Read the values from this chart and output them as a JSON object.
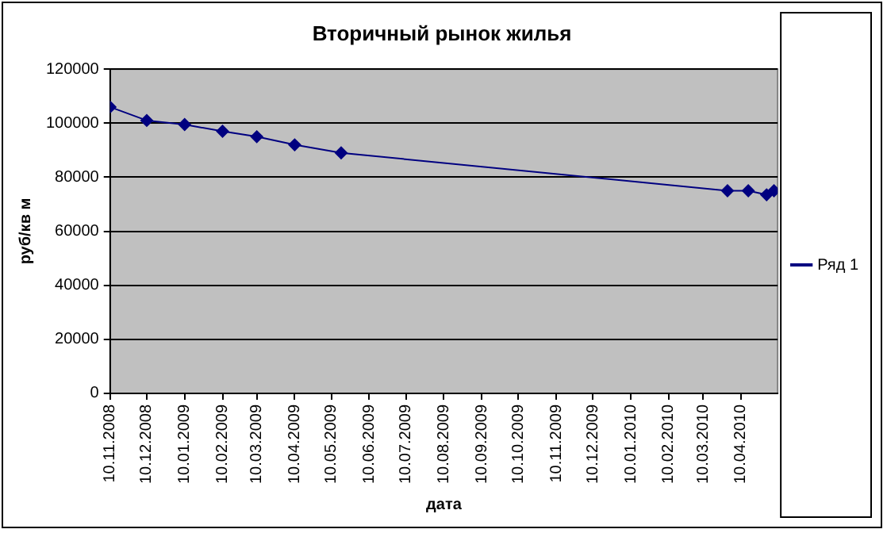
{
  "chart_data": {
    "type": "line",
    "title": "Вторичный рынок жилья",
    "xlabel": "дата",
    "ylabel": "руб/кв м",
    "x": [
      "2008-11-10",
      "2008-12-10",
      "2009-01-10",
      "2009-02-10",
      "2009-03-10",
      "2009-04-10",
      "2009-05-18",
      "2010-03-30",
      "2010-04-16",
      "2010-05-01",
      "2010-05-07"
    ],
    "series": [
      {
        "name": "Ряд 1",
        "color": "#000080",
        "values": [
          106000,
          101000,
          99500,
          97000,
          95000,
          92000,
          89000,
          75000,
          75000,
          73500,
          75000
        ]
      }
    ],
    "xlim": [
      "2008-11-10",
      "2010-05-10"
    ],
    "xticks": [
      {
        "value": "2008-11-10",
        "label": "10.11.2008"
      },
      {
        "value": "2008-12-10",
        "label": "10.12.2008"
      },
      {
        "value": "2009-01-10",
        "label": "10.01.2009"
      },
      {
        "value": "2009-02-10",
        "label": "10.02.2009"
      },
      {
        "value": "2009-03-10",
        "label": "10.03.2009"
      },
      {
        "value": "2009-04-10",
        "label": "10.04.2009"
      },
      {
        "value": "2009-05-10",
        "label": "10.05.2009"
      },
      {
        "value": "2009-06-10",
        "label": "10.06.2009"
      },
      {
        "value": "2009-07-10",
        "label": "10.07.2009"
      },
      {
        "value": "2009-08-10",
        "label": "10.08.2009"
      },
      {
        "value": "2009-09-10",
        "label": "10.09.2009"
      },
      {
        "value": "2009-10-10",
        "label": "10.10.2009"
      },
      {
        "value": "2009-11-10",
        "label": "10.11.2009"
      },
      {
        "value": "2009-12-10",
        "label": "10.12.2009"
      },
      {
        "value": "2010-01-10",
        "label": "10.01.2010"
      },
      {
        "value": "2010-02-10",
        "label": "10.02.2010"
      },
      {
        "value": "2010-03-10",
        "label": "10.03.2010"
      },
      {
        "value": "2010-04-10",
        "label": "10.04.2010"
      }
    ],
    "ylim": [
      0,
      120000
    ],
    "yticks": [
      0,
      20000,
      40000,
      60000,
      80000,
      100000,
      120000
    ],
    "grid": "y",
    "legend": "right",
    "marker": "diamond",
    "line_style": "solid"
  }
}
